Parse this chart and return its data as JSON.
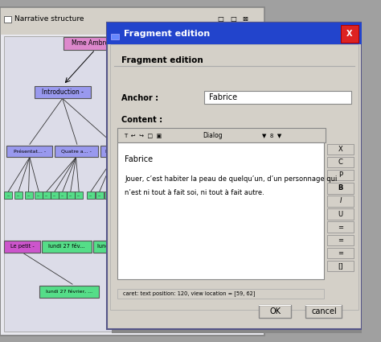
{
  "bg_window_title": "Narrative structure",
  "bg_color": "#e8e8ee",
  "bg_border": "#888888",
  "bg_titlebar_color": "#d4d0c8",
  "inner_bg": "#dcdce8",
  "node_purple": "#9999ee",
  "node_pink": "#dd88cc",
  "node_green": "#55dd88",
  "node_magenta": "#cc55cc",
  "line_color": "#333333",
  "dlg_title": "Fragment edition",
  "dlg_titlebar": "#2244cc",
  "dlg_bg": "#d4d0c8",
  "dlg_close_color": "#dd2222",
  "dlg_close_border": "#aa0000",
  "white": "#ffffff",
  "anchor_label": "Anchor :",
  "anchor_value": "Fabrice",
  "content_label": "Content :",
  "toolbar_text": "Dialog",
  "fragment_edition_label": "Fragment edition",
  "text_line1": "Fabrice",
  "text_line2": "Jouer, c’est habiter la peau de quelqu’un, d’un personnage qui",
  "text_line3": "n’est ni tout à fait soi, ni tout à fait autre.",
  "status_text": "caret: text position: 120, view location = [59, 62]",
  "ok_btn": "OK",
  "cancel_btn": "cancel",
  "side_buttons": [
    "X",
    "C",
    "P",
    "B",
    "I",
    "U",
    "=",
    "=",
    "=",
    "[]"
  ],
  "side_button_bold": [
    false,
    false,
    false,
    true,
    false,
    false,
    false,
    false,
    false,
    false
  ],
  "side_button_italic": [
    false,
    false,
    false,
    false,
    true,
    false,
    false,
    false,
    false,
    false
  ],
  "side_button_underline": [
    false,
    false,
    false,
    false,
    false,
    true,
    false,
    false,
    false,
    false
  ]
}
